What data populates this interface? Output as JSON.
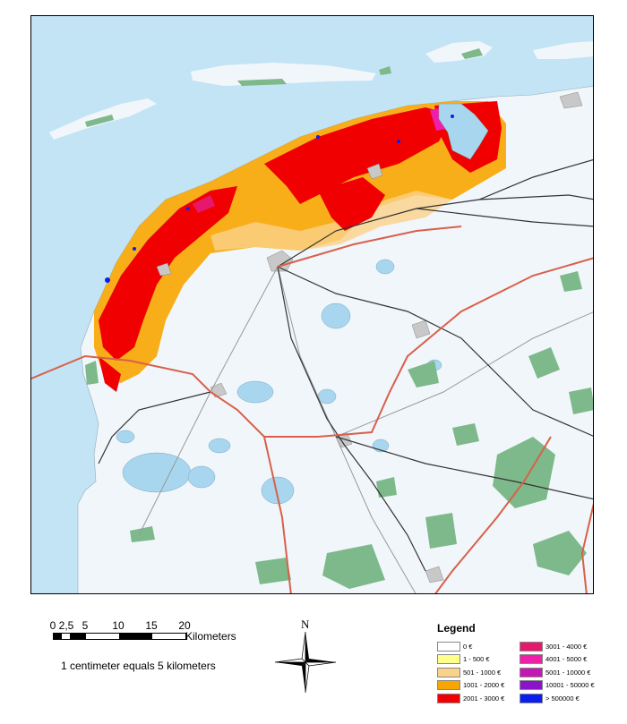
{
  "scale": {
    "ticks": [
      "0",
      "2,5",
      "5",
      "10",
      "15",
      "20"
    ],
    "unit_label": "Kilometers",
    "note": "1 centimeter equals 5 kilometers"
  },
  "north_arrow": {
    "letter": "N"
  },
  "legend": {
    "title": "Legend",
    "items": [
      {
        "label": "0 €",
        "color": "#ffffff"
      },
      {
        "label": "3001 - 4000 €",
        "color": "#e6186e"
      },
      {
        "label": "1 - 500 €",
        "color": "#ffff8c"
      },
      {
        "label": "4001 - 5000 €",
        "color": "#ee1fa8"
      },
      {
        "label": "501 - 1000 €",
        "color": "#fbd28a"
      },
      {
        "label": "5001 - 10000 €",
        "color": "#c418b4"
      },
      {
        "label": "1001 - 2000 €",
        "color": "#f7a600"
      },
      {
        "label": "10001 - 50000 €",
        "color": "#8a14c8"
      },
      {
        "label": "2001 - 3000 €",
        "color": "#f00000"
      },
      {
        "label": "> 500000 €",
        "color": "#0a1ef0"
      }
    ]
  },
  "map_colors": {
    "sea": "#c2e4f5",
    "land": "#f1f6fb",
    "lake": "#a8d6ee",
    "forest": "#7db98a",
    "urban": "#c8c8c8",
    "main_road": "#d8604a",
    "road": "#333333",
    "rail": "#999999"
  }
}
